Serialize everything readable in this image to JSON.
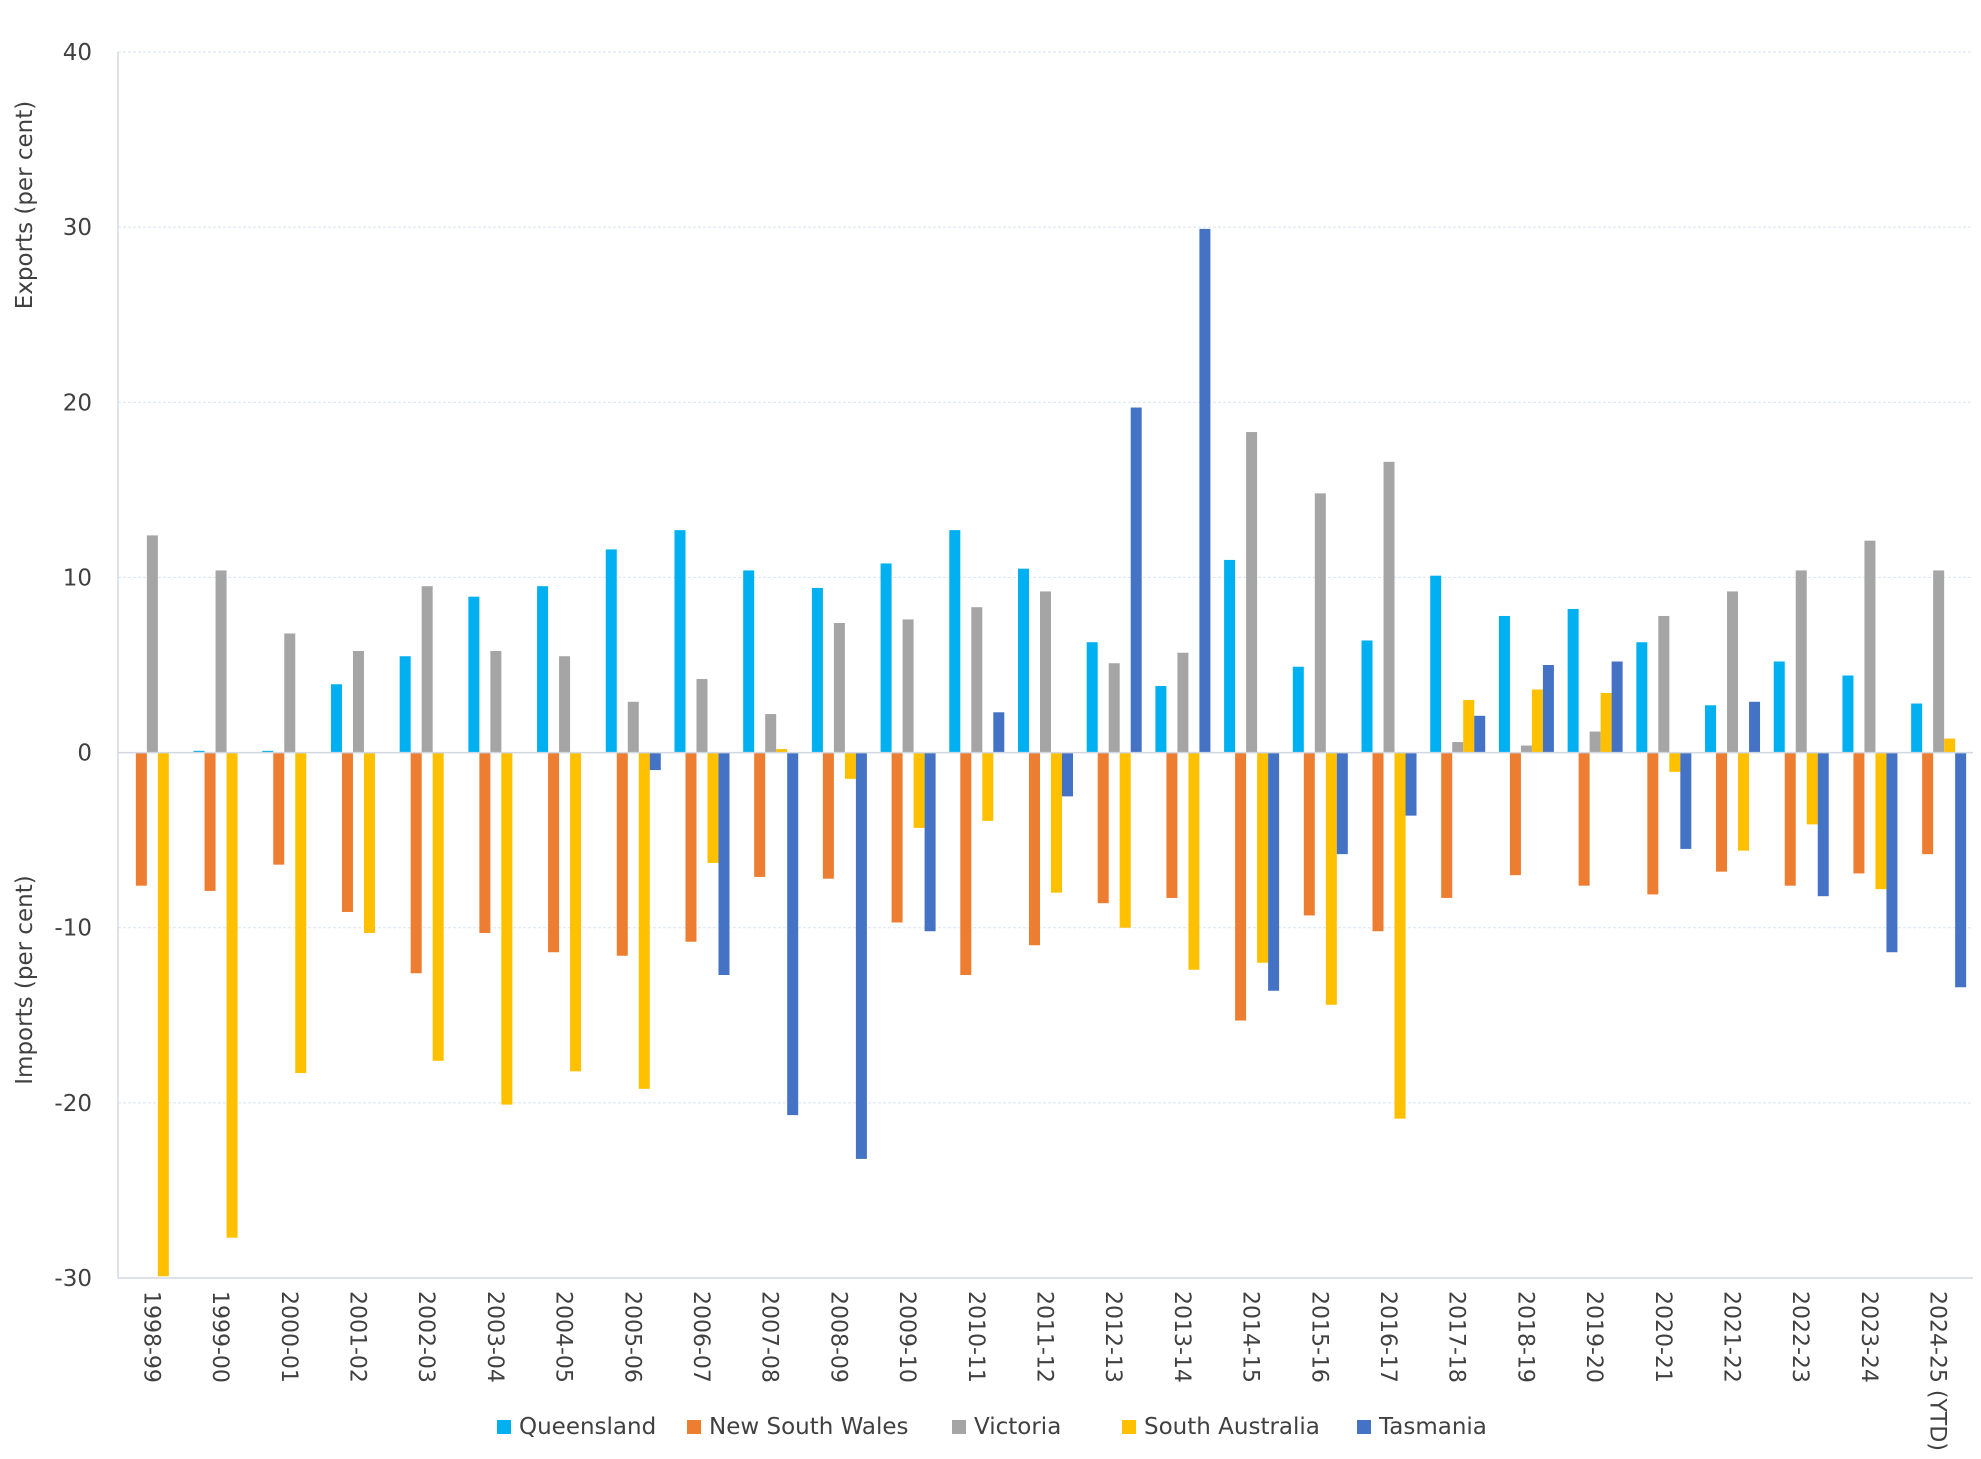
{
  "chart_data": {
    "type": "bar",
    "title": "",
    "ylabel_top": "Exports (per cent)",
    "ylabel_bottom": "Imports (per cent)",
    "xlabel": "",
    "ylim": [
      -30,
      40
    ],
    "yticks": [
      -30,
      -20,
      -10,
      0,
      10,
      20,
      30,
      40
    ],
    "grid": true,
    "legend_position": "bottom",
    "categories": [
      "1998-99",
      "1999-00",
      "2000-01",
      "2001-02",
      "2002-03",
      "2003-04",
      "2004-05",
      "2005-06",
      "2006-07",
      "2007-08",
      "2008-09",
      "2009-10",
      "2010-11",
      "2011-12",
      "2012-13",
      "2013-14",
      "2014-15",
      "2015-16",
      "2016-17",
      "2017-18",
      "2018-19",
      "2019-20",
      "2020-21",
      "2021-22",
      "2022-23",
      "2023-24",
      "2024-25 (YTD)"
    ],
    "series": [
      {
        "name": "Queensland",
        "color": "#00b0f0",
        "values": [
          0,
          0.1,
          0.1,
          3.9,
          5.5,
          8.9,
          9.5,
          11.6,
          12.7,
          10.4,
          9.4,
          10.8,
          12.7,
          10.5,
          6.3,
          3.8,
          11.0,
          4.9,
          6.4,
          10.1,
          7.8,
          8.2,
          6.3,
          2.7,
          5.2,
          4.4,
          2.8
        ]
      },
      {
        "name": "New South Wales",
        "color": "#ed7d31",
        "values": [
          -7.6,
          -7.9,
          -6.4,
          -9.1,
          -12.6,
          -10.3,
          -11.4,
          -11.6,
          -10.8,
          -7.1,
          -7.2,
          -9.7,
          -12.7,
          -11.0,
          -8.6,
          -8.3,
          -15.3,
          -9.3,
          -10.2,
          -8.3,
          -7.0,
          -7.6,
          -8.1,
          -6.8,
          -7.6,
          -6.9,
          -5.8
        ]
      },
      {
        "name": "Victoria",
        "color": "#a5a5a5",
        "values": [
          12.4,
          10.4,
          6.8,
          5.8,
          9.5,
          5.8,
          5.5,
          2.9,
          4.2,
          2.2,
          7.4,
          7.6,
          8.3,
          9.2,
          5.1,
          5.7,
          18.3,
          14.8,
          16.6,
          0.6,
          0.4,
          1.2,
          7.8,
          9.2,
          10.4,
          12.1,
          10.4
        ]
      },
      {
        "name": "South Australia",
        "color": "#ffc000",
        "values": [
          -29.9,
          -27.7,
          -18.3,
          -10.3,
          -17.6,
          -20.1,
          -18.2,
          -19.2,
          -6.3,
          0.2,
          -1.5,
          -4.3,
          -3.9,
          -8.0,
          -10.0,
          -12.4,
          -12.0,
          -14.4,
          -20.9,
          3.0,
          3.6,
          3.4,
          -1.1,
          -5.6,
          -4.1,
          -7.8,
          0.8
        ]
      },
      {
        "name": "Tasmania",
        "color": "#4472c4",
        "values": [
          0,
          0,
          0,
          0,
          0,
          0,
          0,
          -1.0,
          -12.7,
          -20.7,
          -23.2,
          -10.2,
          2.3,
          -2.5,
          19.7,
          29.9,
          -13.6,
          -5.8,
          -3.6,
          2.1,
          5.0,
          5.2,
          -5.5,
          2.9,
          -8.2,
          -11.4,
          -13.4
        ]
      }
    ]
  }
}
